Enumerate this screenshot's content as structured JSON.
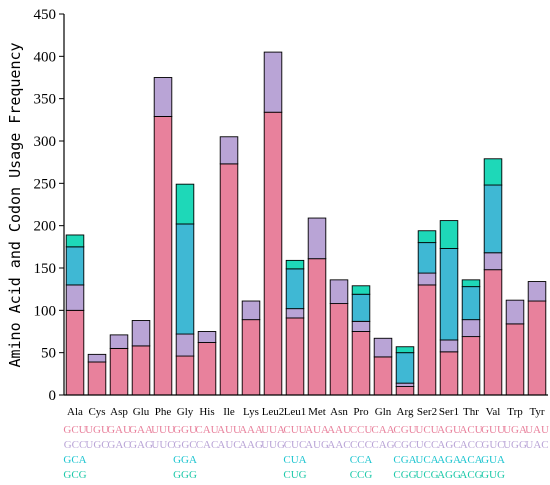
{
  "chart_data": {
    "type": "bar",
    "stacked": true,
    "ylabel": "Amino Acid and Codon Usage Frequency",
    "ylim": [
      0,
      450
    ],
    "yticks": [
      0,
      50,
      100,
      150,
      200,
      250,
      300,
      350,
      400,
      450
    ],
    "categories": [
      "Ala",
      "Cys",
      "Asp",
      "Glu",
      "Phe",
      "Gly",
      "His",
      "Ile",
      "Lys",
      "Leu2",
      "Leu1",
      "Met",
      "Asn",
      "Pro",
      "Gln",
      "Arg",
      "Ser2",
      "Ser1",
      "Thr",
      "Val",
      "Trp",
      "Tyr"
    ],
    "stack_values": [
      [
        100,
        30,
        45,
        14
      ],
      [
        39,
        9
      ],
      [
        55,
        16
      ],
      [
        58,
        30
      ],
      [
        329,
        46
      ],
      [
        46,
        26,
        130,
        47
      ],
      [
        62,
        13
      ],
      [
        273,
        32
      ],
      [
        89,
        22
      ],
      [
        334,
        71
      ],
      [
        91,
        11,
        47,
        10
      ],
      [
        161,
        48
      ],
      [
        108,
        28
      ],
      [
        75,
        12,
        32,
        10
      ],
      [
        45,
        22
      ],
      [
        10,
        4,
        36,
        7
      ],
      [
        130,
        14,
        36,
        14
      ],
      [
        51,
        14,
        108,
        33
      ],
      [
        69,
        20,
        39,
        8
      ],
      [
        148,
        20,
        80,
        31
      ],
      [
        84,
        28
      ],
      [
        111,
        23
      ]
    ],
    "codons": [
      [
        "GCU",
        "GCC",
        "GCA",
        "GCG"
      ],
      [
        "UGU",
        "UGC"
      ],
      [
        "GAU",
        "GAC"
      ],
      [
        "GAA",
        "GAG"
      ],
      [
        "UUU",
        "UUC"
      ],
      [
        "GGU",
        "GGC",
        "GGA",
        "GGG"
      ],
      [
        "CAU",
        "CAC"
      ],
      [
        "AUU",
        "AUC"
      ],
      [
        "AAA",
        "AAG"
      ],
      [
        "UUA",
        "UUG"
      ],
      [
        "CUU",
        "CUC",
        "CUA",
        "CUG"
      ],
      [
        "AUA",
        "AUG"
      ],
      [
        "AAU",
        "AAC"
      ],
      [
        "CCU",
        "CCC",
        "CCA",
        "CCG"
      ],
      [
        "CAA",
        "CAG"
      ],
      [
        "CGU",
        "CGC",
        "CGA",
        "CGG"
      ],
      [
        "UCU",
        "UCC",
        "UCA",
        "UCG"
      ],
      [
        "AGU",
        "AGC",
        "AGA",
        "AGG"
      ],
      [
        "ACU",
        "ACC",
        "ACA",
        "ACG"
      ],
      [
        "GUU",
        "GUC",
        "GUA",
        "GUG"
      ],
      [
        "UGA",
        "UGG"
      ],
      [
        "UAU",
        "UAC"
      ]
    ],
    "stack_colors": [
      "#E8819C",
      "#B9A4D6",
      "#3FB8D4",
      "#1ED8B8"
    ],
    "label_colors": [
      "#E8819C",
      "#B9A4D6",
      "#1EC5D0",
      "#1EC9A9"
    ],
    "grid": false
  }
}
